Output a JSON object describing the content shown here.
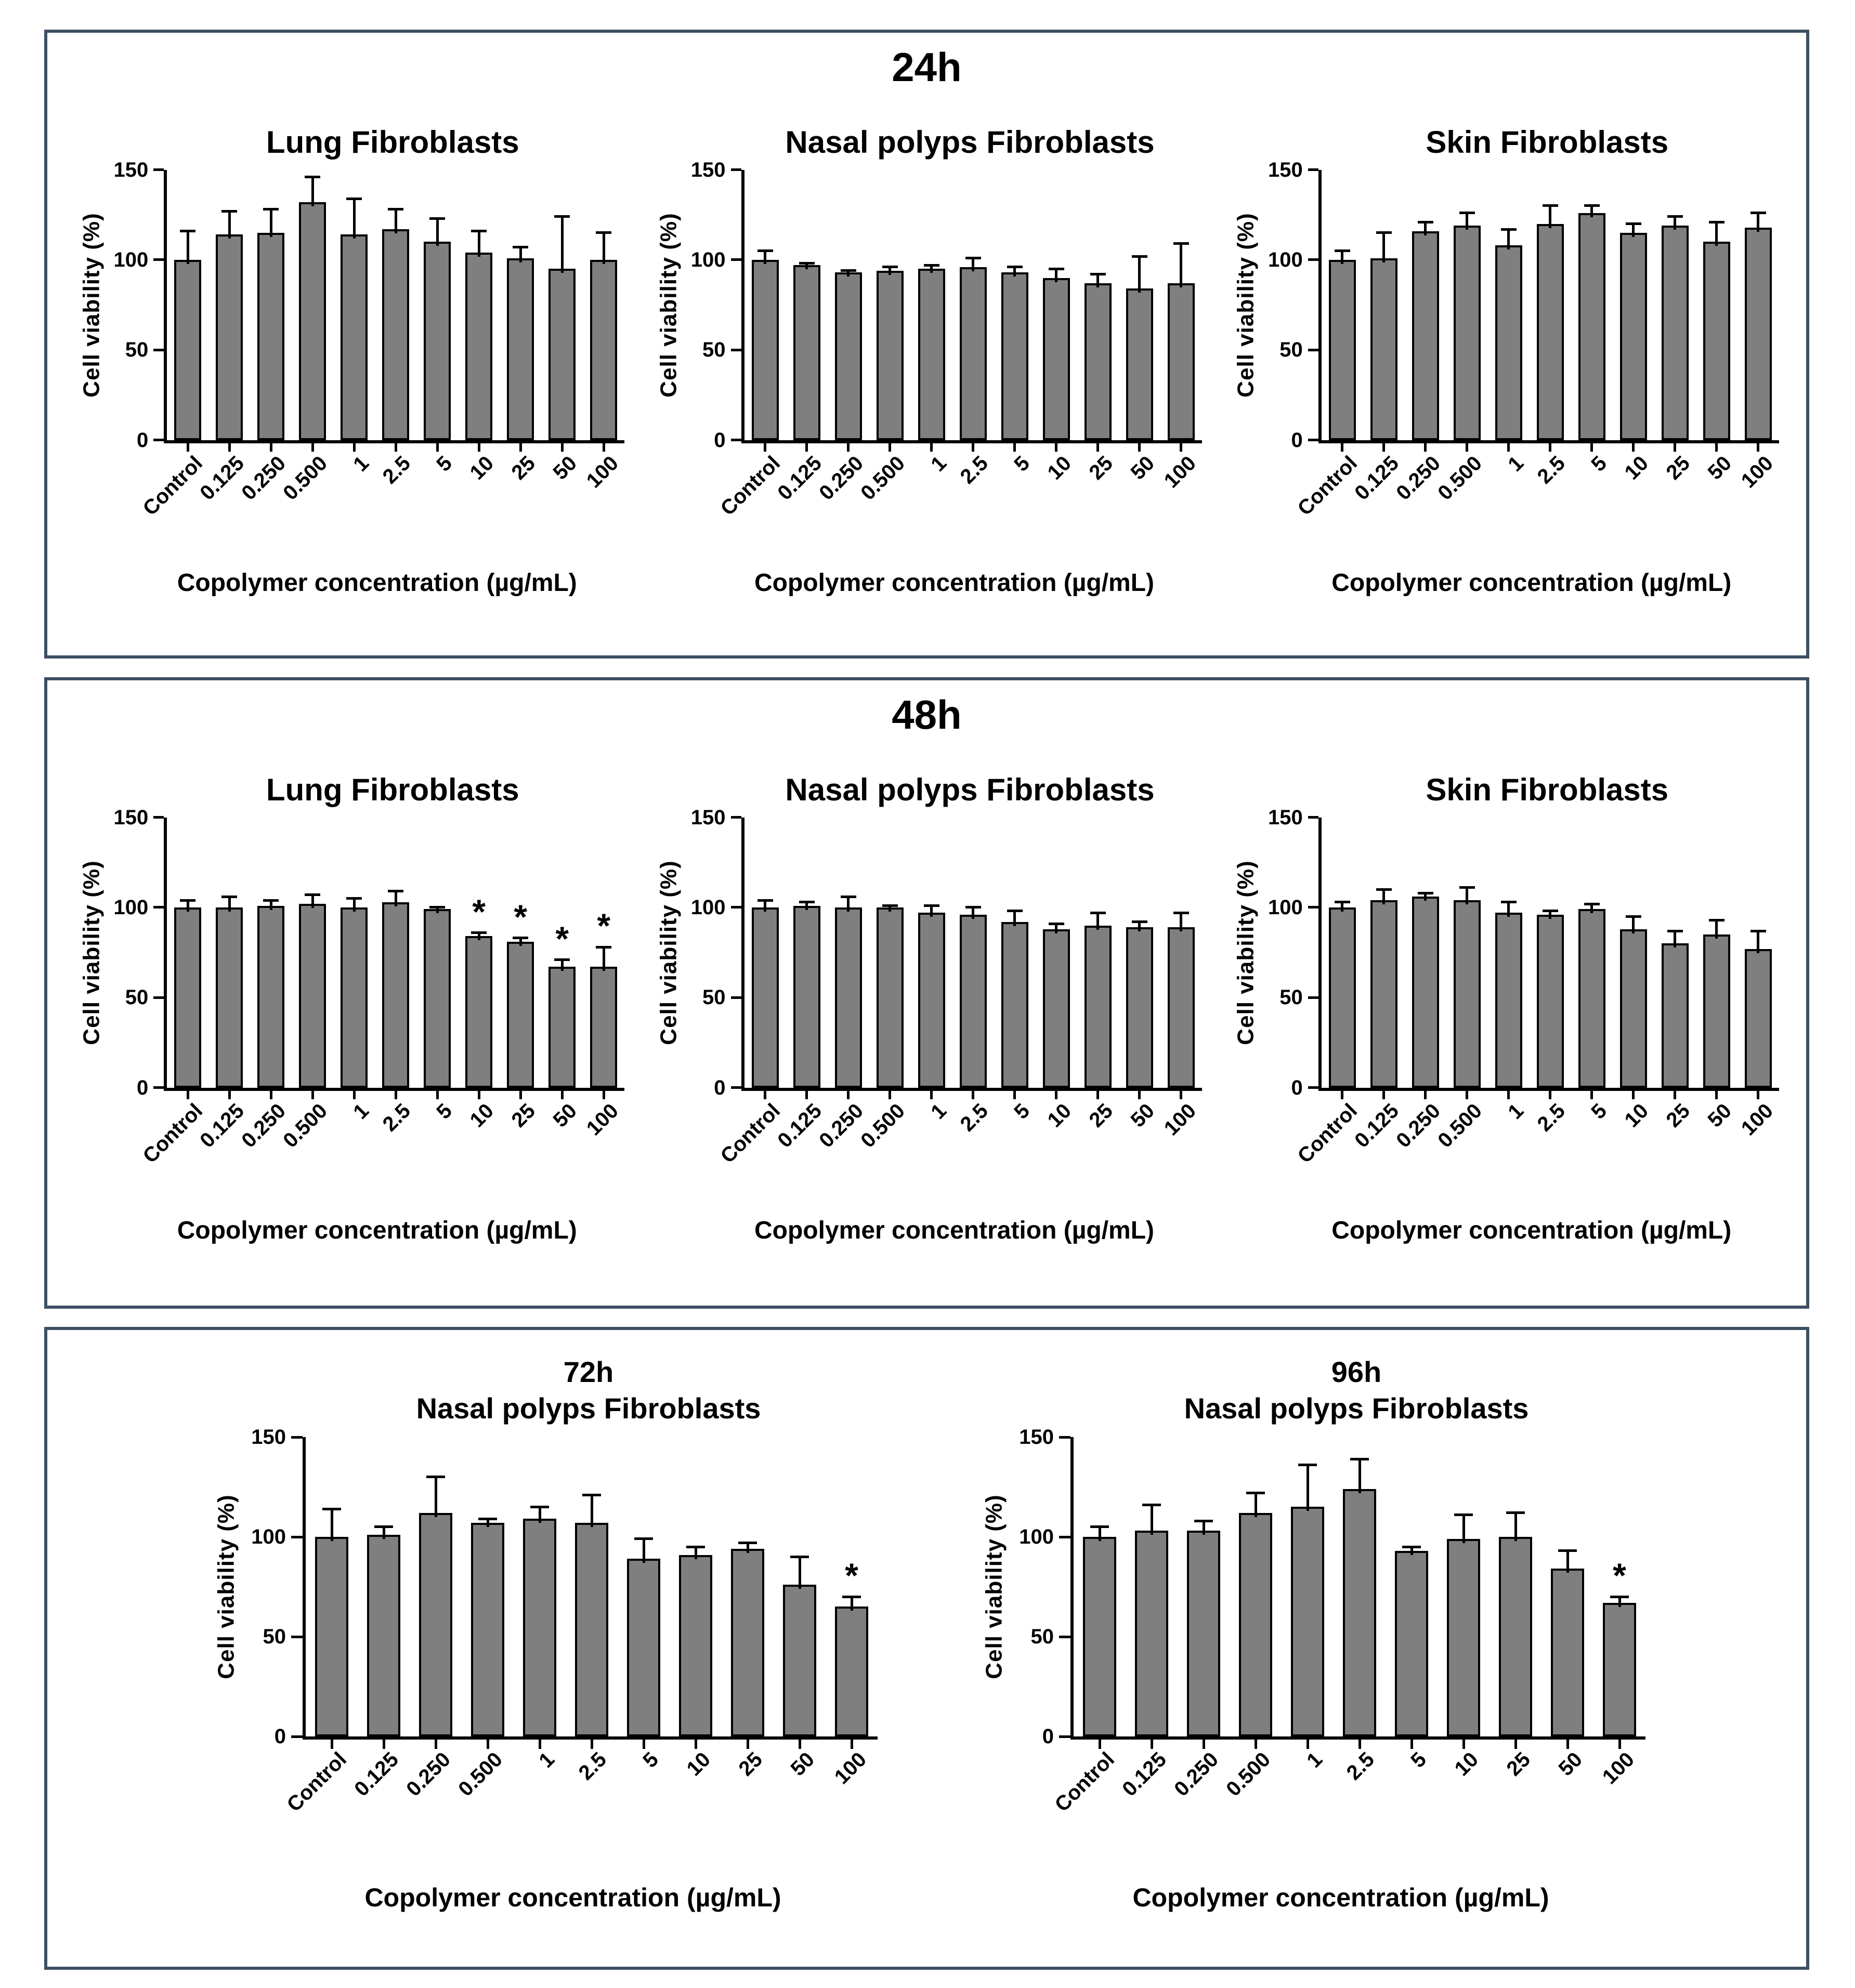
{
  "figure": {
    "background": "#ffffff",
    "panel_border_color": "#3d4f63",
    "bar_fill_color": "#7f7f7f",
    "bar_border_color": "#000000",
    "error_bar_color": "#000000",
    "significance_marker": "*"
  },
  "panels": [
    {
      "id": "24h",
      "title": "24h",
      "charts": [
        0,
        1,
        2
      ]
    },
    {
      "id": "48h",
      "title": "48h",
      "charts": [
        3,
        4,
        5
      ]
    },
    {
      "id": "72-96h",
      "title": "",
      "charts": [
        6,
        7
      ]
    }
  ],
  "chart_data": [
    {
      "type": "bar",
      "panel": "24h",
      "time_label": "",
      "title": "Lung Fibroblasts",
      "ylabel": "Cell viability (%)",
      "xlabel": "Copolymer concentration (µg/mL)",
      "ylim": [
        0,
        150
      ],
      "yticks": [
        0,
        50,
        100,
        150
      ],
      "grid": false,
      "categories": [
        "Control",
        "0.125",
        "0.250",
        "0.500",
        "1",
        "2.5",
        "5",
        "10",
        "25",
        "50",
        "100"
      ],
      "values": [
        100,
        114,
        115,
        132,
        114,
        117,
        110,
        104,
        101,
        95,
        100
      ],
      "errors_up": [
        16,
        13,
        13,
        14,
        20,
        11,
        13,
        12,
        6,
        29,
        15
      ],
      "significant": [
        false,
        false,
        false,
        false,
        false,
        false,
        false,
        false,
        false,
        false,
        false
      ]
    },
    {
      "type": "bar",
      "panel": "24h",
      "time_label": "",
      "title": "Nasal polyps Fibroblasts",
      "ylabel": "Cell viability (%)",
      "xlabel": "Copolymer concentration (µg/mL)",
      "ylim": [
        0,
        150
      ],
      "yticks": [
        0,
        50,
        100,
        150
      ],
      "grid": false,
      "categories": [
        "Control",
        "0.125",
        "0.250",
        "0.500",
        "1",
        "2.5",
        "5",
        "10",
        "25",
        "50",
        "100"
      ],
      "values": [
        100,
        97,
        93,
        94,
        95,
        96,
        93,
        90,
        87,
        84,
        87
      ],
      "errors_up": [
        5,
        1,
        1,
        2,
        2,
        5,
        3,
        5,
        5,
        18,
        22
      ],
      "significant": [
        false,
        false,
        false,
        false,
        false,
        false,
        false,
        false,
        false,
        false,
        false
      ]
    },
    {
      "type": "bar",
      "panel": "24h",
      "time_label": "",
      "title": "Skin Fibroblasts",
      "ylabel": "Cell viability (%)",
      "xlabel": "Copolymer concentration (µg/mL)",
      "ylim": [
        0,
        150
      ],
      "yticks": [
        0,
        50,
        100,
        150
      ],
      "grid": false,
      "categories": [
        "Control",
        "0.125",
        "0.250",
        "0.500",
        "1",
        "2.5",
        "5",
        "10",
        "25",
        "50",
        "100"
      ],
      "values": [
        100,
        101,
        116,
        119,
        108,
        120,
        126,
        115,
        119,
        110,
        118
      ],
      "errors_up": [
        5,
        14,
        5,
        7,
        9,
        10,
        4,
        5,
        5,
        11,
        8
      ],
      "significant": [
        false,
        false,
        false,
        false,
        false,
        false,
        false,
        false,
        false,
        false,
        false
      ]
    },
    {
      "type": "bar",
      "panel": "48h",
      "time_label": "",
      "title": "Lung Fibroblasts",
      "ylabel": "Cell viability (%)",
      "xlabel": "Copolymer concentration (µg/mL)",
      "ylim": [
        0,
        150
      ],
      "yticks": [
        0,
        50,
        100,
        150
      ],
      "grid": false,
      "categories": [
        "Control",
        "0.125",
        "0.250",
        "0.500",
        "1",
        "2.5",
        "5",
        "10",
        "25",
        "50",
        "100"
      ],
      "values": [
        100,
        100,
        101,
        102,
        100,
        103,
        99,
        84,
        81,
        67,
        67
      ],
      "errors_up": [
        4,
        6,
        3,
        5,
        5,
        6,
        1,
        2,
        2,
        4,
        11
      ],
      "significant": [
        false,
        false,
        false,
        false,
        false,
        false,
        false,
        true,
        true,
        true,
        true
      ]
    },
    {
      "type": "bar",
      "panel": "48h",
      "time_label": "",
      "title": "Nasal polyps Fibroblasts",
      "ylabel": "Cell viability (%)",
      "xlabel": "Copolymer concentration (µg/mL)",
      "ylim": [
        0,
        150
      ],
      "yticks": [
        0,
        50,
        100,
        150
      ],
      "grid": false,
      "categories": [
        "Control",
        "0.125",
        "0.250",
        "0.500",
        "1",
        "2.5",
        "5",
        "10",
        "25",
        "50",
        "100"
      ],
      "values": [
        100,
        101,
        100,
        100,
        97,
        96,
        92,
        88,
        90,
        89,
        89
      ],
      "errors_up": [
        4,
        2,
        6,
        1,
        4,
        4,
        6,
        3,
        7,
        3,
        8
      ],
      "significant": [
        false,
        false,
        false,
        false,
        false,
        false,
        false,
        false,
        false,
        false,
        false
      ]
    },
    {
      "type": "bar",
      "panel": "48h",
      "time_label": "",
      "title": "Skin Fibroblasts",
      "ylabel": "Cell viability (%)",
      "xlabel": "Copolymer concentration (µg/mL)",
      "ylim": [
        0,
        150
      ],
      "yticks": [
        0,
        50,
        100,
        150
      ],
      "grid": false,
      "categories": [
        "Control",
        "0.125",
        "0.250",
        "0.500",
        "1",
        "2.5",
        "5",
        "10",
        "25",
        "50",
        "100"
      ],
      "values": [
        100,
        104,
        106,
        104,
        97,
        96,
        99,
        88,
        80,
        85,
        77
      ],
      "errors_up": [
        3,
        6,
        2,
        7,
        6,
        2,
        3,
        7,
        7,
        8,
        10
      ],
      "significant": [
        false,
        false,
        false,
        false,
        false,
        false,
        false,
        false,
        false,
        false,
        false
      ]
    },
    {
      "type": "bar",
      "panel": "72-96h",
      "time_label": "72h",
      "title": "Nasal polyps Fibroblasts",
      "ylabel": "Cell viability (%)",
      "xlabel": "Copolymer concentration (µg/mL)",
      "ylim": [
        0,
        150
      ],
      "yticks": [
        0,
        50,
        100,
        150
      ],
      "grid": false,
      "categories": [
        "Control",
        "0.125",
        "0.250",
        "0.500",
        "1",
        "2.5",
        "5",
        "10",
        "25",
        "50",
        "100"
      ],
      "values": [
        100,
        101,
        112,
        107,
        109,
        107,
        89,
        91,
        94,
        76,
        65
      ],
      "errors_up": [
        14,
        4,
        18,
        2,
        6,
        14,
        10,
        4,
        3,
        14,
        5
      ],
      "significant": [
        false,
        false,
        false,
        false,
        false,
        false,
        false,
        false,
        false,
        false,
        true
      ]
    },
    {
      "type": "bar",
      "panel": "72-96h",
      "time_label": "96h",
      "title": "Nasal polyps Fibroblasts",
      "ylabel": "Cell viability (%)",
      "xlabel": "Copolymer concentration (µg/mL)",
      "ylim": [
        0,
        150
      ],
      "yticks": [
        0,
        50,
        100,
        150
      ],
      "grid": false,
      "categories": [
        "Control",
        "0.125",
        "0.250",
        "0.500",
        "1",
        "2.5",
        "5",
        "10",
        "25",
        "50",
        "100"
      ],
      "values": [
        100,
        103,
        103,
        112,
        115,
        124,
        93,
        99,
        100,
        84,
        67
      ],
      "errors_up": [
        5,
        13,
        5,
        10,
        21,
        15,
        2,
        12,
        12,
        9,
        3
      ],
      "significant": [
        false,
        false,
        false,
        false,
        false,
        false,
        false,
        false,
        false,
        false,
        true
      ]
    }
  ]
}
